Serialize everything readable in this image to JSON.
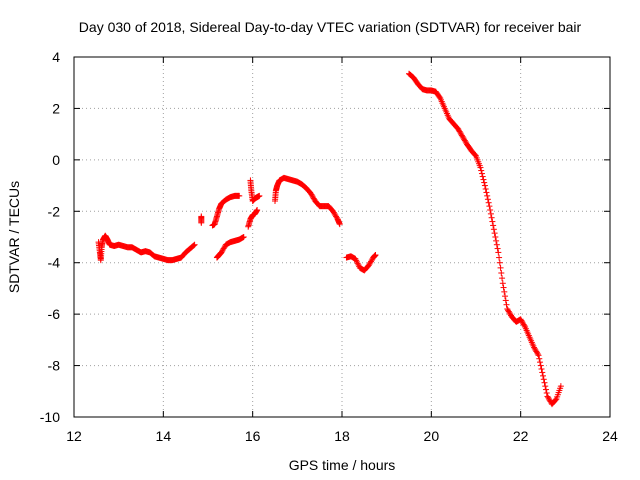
{
  "chart_data": {
    "type": "scatter",
    "title": "Day 030 of 2018, Sidereal Day-to-day VTEC variation (SDTVAR) for receiver bair",
    "xlabel": "GPS time / hours",
    "ylabel": "SDTVAR / TECUs",
    "xlim": [
      12,
      24
    ],
    "ylim": [
      -10,
      4
    ],
    "xticks": [
      12,
      14,
      16,
      18,
      20,
      22,
      24
    ],
    "yticks": [
      -10,
      -8,
      -6,
      -4,
      -2,
      0,
      2,
      4
    ],
    "grid": true,
    "marker": "+",
    "color": "#ff0000",
    "series": [
      {
        "name": "SDTVAR",
        "segments": [
          [
            [
              12.55,
              -3.2
            ],
            [
              12.58,
              -3.6
            ],
            [
              12.6,
              -3.9
            ],
            [
              12.62,
              -3.4
            ],
            [
              12.65,
              -3.1
            ],
            [
              12.7,
              -2.95
            ],
            [
              12.75,
              -3.1
            ],
            [
              12.8,
              -3.3
            ],
            [
              12.9,
              -3.35
            ],
            [
              13.0,
              -3.3
            ],
            [
              13.1,
              -3.35
            ],
            [
              13.2,
              -3.4
            ],
            [
              13.3,
              -3.4
            ],
            [
              13.4,
              -3.5
            ],
            [
              13.5,
              -3.6
            ],
            [
              13.6,
              -3.55
            ],
            [
              13.7,
              -3.6
            ],
            [
              13.8,
              -3.75
            ],
            [
              13.9,
              -3.8
            ],
            [
              14.0,
              -3.85
            ],
            [
              14.1,
              -3.9
            ],
            [
              14.2,
              -3.9
            ],
            [
              14.3,
              -3.85
            ],
            [
              14.4,
              -3.8
            ],
            [
              14.5,
              -3.6
            ],
            [
              14.6,
              -3.45
            ],
            [
              14.7,
              -3.3
            ]
          ],
          [
            [
              14.85,
              -2.2
            ],
            [
              14.85,
              -2.45
            ]
          ],
          [
            [
              15.1,
              -2.55
            ],
            [
              15.15,
              -2.5
            ],
            [
              15.2,
              -2.2
            ],
            [
              15.25,
              -1.9
            ],
            [
              15.3,
              -1.7
            ],
            [
              15.4,
              -1.55
            ],
            [
              15.5,
              -1.45
            ],
            [
              15.6,
              -1.4
            ],
            [
              15.7,
              -1.4
            ]
          ],
          [
            [
              15.2,
              -3.8
            ],
            [
              15.25,
              -3.7
            ],
            [
              15.3,
              -3.6
            ],
            [
              15.4,
              -3.3
            ],
            [
              15.5,
              -3.2
            ],
            [
              15.6,
              -3.15
            ],
            [
              15.7,
              -3.1
            ],
            [
              15.8,
              -3.0
            ]
          ],
          [
            [
              15.95,
              -0.8
            ],
            [
              15.97,
              -1.2
            ],
            [
              16.0,
              -1.6
            ],
            [
              16.05,
              -1.5
            ],
            [
              16.1,
              -1.45
            ],
            [
              16.15,
              -1.4
            ]
          ],
          [
            [
              15.9,
              -2.6
            ],
            [
              15.95,
              -2.3
            ],
            [
              16.0,
              -2.15
            ],
            [
              16.05,
              -2.1
            ],
            [
              16.1,
              -1.95
            ]
          ],
          [
            [
              16.5,
              -1.6
            ],
            [
              16.52,
              -1.2
            ],
            [
              16.55,
              -1.0
            ],
            [
              16.6,
              -0.8
            ],
            [
              16.7,
              -0.7
            ],
            [
              16.8,
              -0.75
            ],
            [
              16.9,
              -0.8
            ],
            [
              17.0,
              -0.85
            ],
            [
              17.1,
              -0.95
            ],
            [
              17.2,
              -1.1
            ],
            [
              17.3,
              -1.3
            ],
            [
              17.4,
              -1.6
            ],
            [
              17.5,
              -1.8
            ],
            [
              17.6,
              -1.8
            ],
            [
              17.7,
              -1.8
            ],
            [
              17.8,
              -2.0
            ],
            [
              17.9,
              -2.3
            ],
            [
              17.95,
              -2.5
            ]
          ],
          [
            [
              18.1,
              -3.8
            ],
            [
              18.2,
              -3.75
            ],
            [
              18.3,
              -3.85
            ],
            [
              18.4,
              -4.2
            ],
            [
              18.5,
              -4.3
            ],
            [
              18.6,
              -4.1
            ],
            [
              18.7,
              -3.8
            ],
            [
              18.75,
              -3.7
            ]
          ],
          [
            [
              19.5,
              3.35
            ],
            [
              19.6,
              3.2
            ],
            [
              19.7,
              2.95
            ],
            [
              19.8,
              2.75
            ],
            [
              19.9,
              2.7
            ],
            [
              20.0,
              2.7
            ],
            [
              20.1,
              2.65
            ],
            [
              20.2,
              2.4
            ],
            [
              20.3,
              2.0
            ],
            [
              20.4,
              1.6
            ],
            [
              20.5,
              1.4
            ],
            [
              20.6,
              1.2
            ],
            [
              20.7,
              0.9
            ],
            [
              20.8,
              0.6
            ],
            [
              20.9,
              0.35
            ],
            [
              21.0,
              0.15
            ],
            [
              21.1,
              -0.3
            ],
            [
              21.2,
              -1.0
            ],
            [
              21.3,
              -1.8
            ],
            [
              21.4,
              -2.7
            ],
            [
              21.5,
              -3.6
            ],
            [
              21.6,
              -4.8
            ],
            [
              21.7,
              -5.8
            ],
            [
              21.8,
              -6.1
            ],
            [
              21.9,
              -6.3
            ],
            [
              22.0,
              -6.2
            ],
            [
              22.1,
              -6.5
            ],
            [
              22.2,
              -6.9
            ],
            [
              22.3,
              -7.3
            ],
            [
              22.4,
              -7.6
            ],
            [
              22.5,
              -8.4
            ],
            [
              22.6,
              -9.2
            ],
            [
              22.7,
              -9.5
            ],
            [
              22.8,
              -9.3
            ],
            [
              22.9,
              -8.8
            ]
          ]
        ]
      }
    ]
  }
}
